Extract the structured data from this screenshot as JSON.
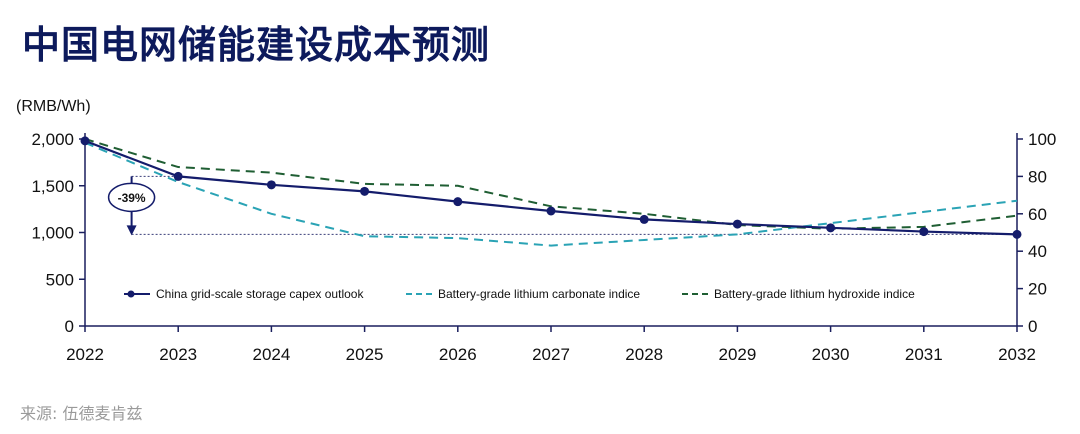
{
  "title": "中国电网储能建设成本预测",
  "source": "来源: 伍德麦肯兹",
  "colors": {
    "navy": "#141c6b",
    "teal": "#2aa3b5",
    "green": "#1f5e33",
    "axis": "#1a1f5e",
    "grid_ref": "#3a3f7a"
  },
  "chart_data": {
    "type": "line",
    "title": "中国电网储能建设成本预测",
    "ylabel": "(RMB/Wh)",
    "x": [
      "2022",
      "2023",
      "2024",
      "2025",
      "2026",
      "2027",
      "2028",
      "2029",
      "2030",
      "2031",
      "2032"
    ],
    "ylim": [
      0,
      2000
    ],
    "y_ticks": [
      "0",
      "500",
      "1,000",
      "1,500",
      "2,000"
    ],
    "y_tick_values": [
      0,
      500,
      1000,
      1500,
      2000
    ],
    "y2lim": [
      0,
      100
    ],
    "y2_ticks": [
      "0",
      "20",
      "40",
      "60",
      "80",
      "100"
    ],
    "y2_tick_values": [
      0,
      20,
      40,
      60,
      80,
      100
    ],
    "grid": false,
    "legend_position": "bottom",
    "annotation": {
      "text": "-39%",
      "from_value": 1600,
      "to_value": 980
    },
    "series": [
      {
        "name": "China grid-scale storage capex outlook",
        "axis": "left",
        "style": "solid-markers",
        "color": "#141c6b",
        "values": [
          1980,
          1600,
          1510,
          1440,
          1330,
          1230,
          1140,
          1090,
          1050,
          1010,
          980
        ]
      },
      {
        "name": "Battery-grade lithium carbonate indice",
        "axis": "right",
        "style": "dashed",
        "color": "#2aa3b5",
        "values": [
          98,
          77,
          60,
          48,
          47,
          43,
          46,
          49,
          55,
          61,
          67
        ]
      },
      {
        "name": "Battery-grade lithium hydroxide indice",
        "axis": "right",
        "style": "dashed",
        "color": "#1f5e33",
        "values": [
          100,
          85,
          82,
          76,
          75,
          64,
          60,
          54,
          52,
          53,
          59
        ]
      }
    ]
  }
}
